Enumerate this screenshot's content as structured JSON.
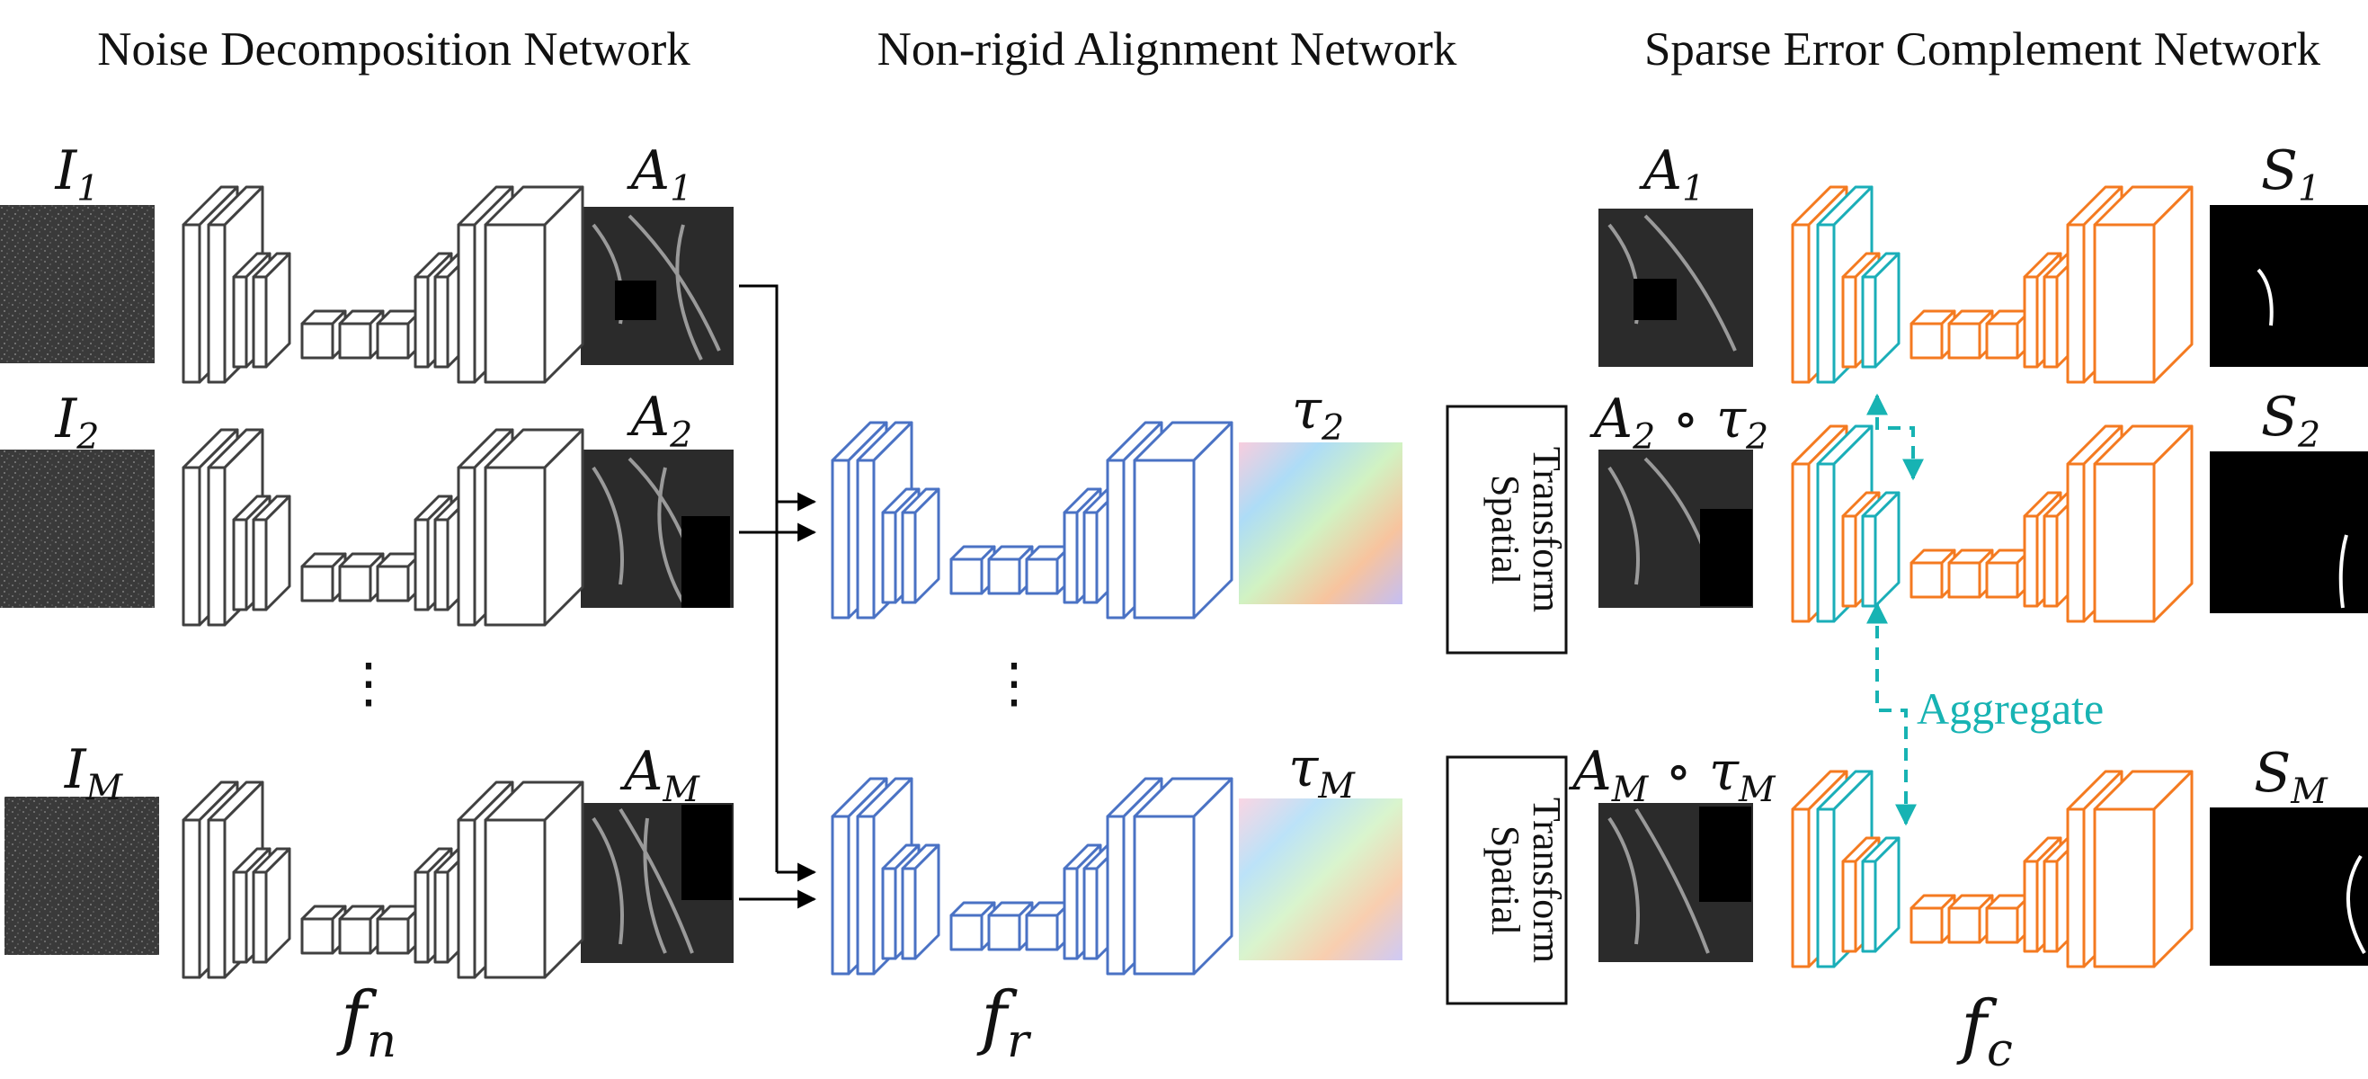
{
  "colors": {
    "noise_net": "#404040",
    "align_net": "#4a72c4",
    "complement_net": "#f47a20",
    "complement_skip": "#1aaeb8",
    "aggregate": "#17b3b3",
    "arrow": "#000000"
  },
  "titles": {
    "noise": "Noise Decomposition Network",
    "align": "Non-rigid Alignment Network",
    "complement": "Sparse Error Complement Network"
  },
  "inputs": [
    {
      "base": "I",
      "sub": "1"
    },
    {
      "base": "I",
      "sub": "2"
    },
    {
      "base": "I",
      "sub": "M"
    }
  ],
  "decomposed": [
    {
      "base": "A",
      "sub": "1"
    },
    {
      "base": "A",
      "sub": "2"
    },
    {
      "base": "A",
      "sub": "M"
    }
  ],
  "fields": [
    {
      "base": "τ",
      "sub": "2"
    },
    {
      "base": "τ",
      "sub": "M"
    }
  ],
  "aligned": [
    {
      "base": "A",
      "sub": "1",
      "tail": ""
    },
    {
      "base": "A",
      "sub": "2",
      "op": " ∘ ",
      "tbase": "τ",
      "tsub": "2"
    },
    {
      "base": "A",
      "sub": "M",
      "op": " ∘ ",
      "tbase": "τ",
      "tsub": "M"
    }
  ],
  "sparse": [
    {
      "base": "S",
      "sub": "1"
    },
    {
      "base": "S",
      "sub": "2"
    },
    {
      "base": "S",
      "sub": "M"
    }
  ],
  "networks": {
    "fn": {
      "base": "f",
      "sub": "n"
    },
    "fr": {
      "base": "f",
      "sub": "r"
    },
    "fc": {
      "base": "f",
      "sub": "c"
    }
  },
  "spatial_transform": {
    "line1": "Spatial",
    "line2": "Transform"
  },
  "aggregate_label": "Aggregate",
  "ellipsis": "⋮"
}
